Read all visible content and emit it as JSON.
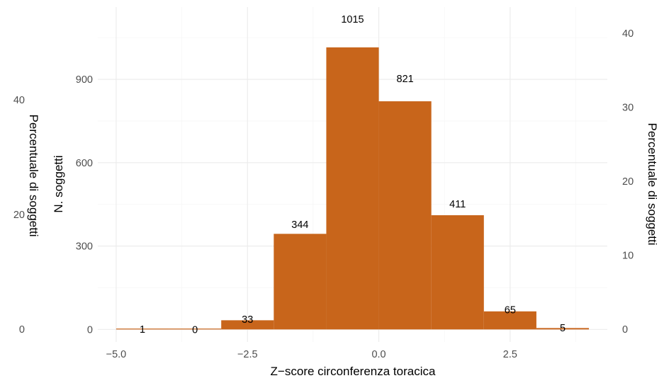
{
  "chart_data": {
    "type": "bar",
    "subtype": "histogram",
    "bin_edges": [
      -5,
      -4,
      -3,
      -2,
      -1,
      0,
      1,
      2,
      3,
      4
    ],
    "values": [
      1,
      0,
      33,
      344,
      1015,
      821,
      411,
      65,
      5
    ],
    "bar_labels": [
      "1",
      "0",
      "33",
      "344",
      "1015",
      "821",
      "411",
      "65",
      "5"
    ],
    "bar_color": "#C8651B",
    "xlabel": "Z−score circonferenza toracica",
    "ylabel": "N. soggetti",
    "y2label": "Percentuale di soggetti",
    "y3label": "Percentuale di soggetti",
    "xlim": [
      -5.35,
      4.35
    ],
    "ylim": [
      -45,
      1160
    ],
    "x_ticks": [
      -5,
      -2.5,
      0,
      2.5
    ],
    "x_tick_labels": [
      "−5.0",
      "−2.5",
      "0.0",
      "2.5"
    ],
    "y_ticks": [
      0,
      300,
      600,
      900
    ],
    "y_tick_labels": [
      "0",
      "300",
      "600",
      "900"
    ],
    "y2_ticks": [
      0,
      10,
      20,
      30,
      40
    ],
    "y2_tick_labels": [
      "0",
      "10",
      "20",
      "30",
      "40"
    ],
    "y3_ticks": [
      0,
      20,
      40
    ],
    "y3_tick_labels": [
      "0",
      "20",
      "40"
    ],
    "grid": true,
    "legend": "none"
  }
}
